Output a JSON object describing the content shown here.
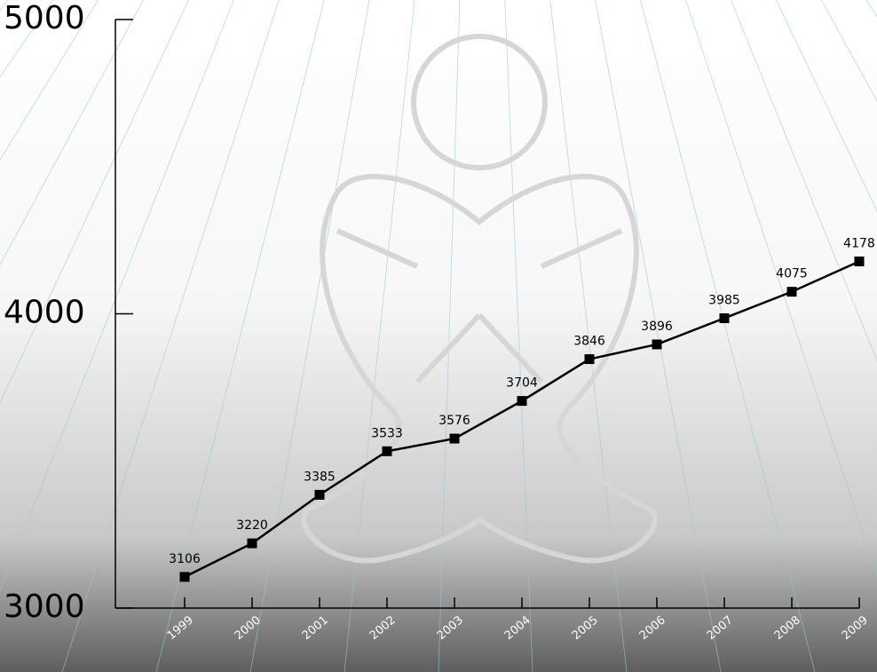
{
  "chart_data": {
    "type": "line",
    "categories": [
      "1999",
      "2000",
      "2001",
      "2002",
      "2003",
      "2004",
      "2005",
      "2006",
      "2007",
      "2008",
      "2009"
    ],
    "values": [
      3106,
      3220,
      3385,
      3533,
      3576,
      3704,
      3846,
      3896,
      3985,
      4075,
      4178
    ],
    "color": "#000000",
    "ylim": [
      3000,
      5000
    ],
    "yticks": [
      3000,
      4000,
      5000
    ],
    "grid": false
  }
}
